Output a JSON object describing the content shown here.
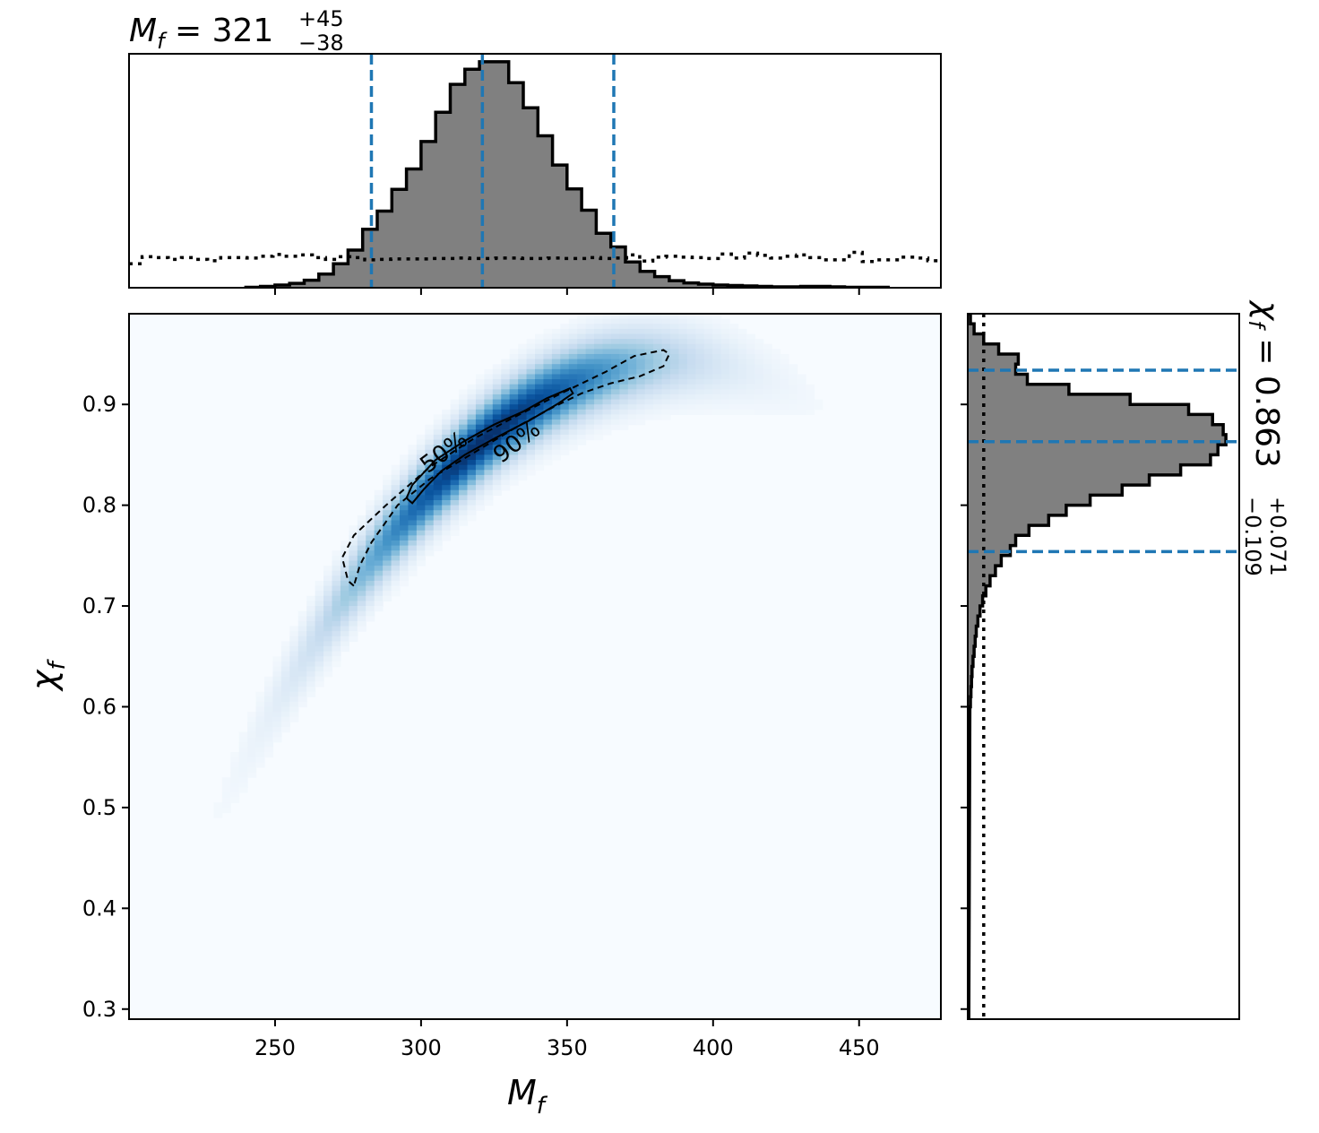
{
  "chart_data": {
    "type": "heatmap",
    "subtype": "corner plot: 2D posterior density with marginal histograms",
    "xlabel": "M_f",
    "ylabel": "χ_f",
    "xlim": [
      200,
      478
    ],
    "ylim": [
      0.29,
      0.99
    ],
    "x_ticks": [
      250,
      300,
      350,
      400,
      450
    ],
    "x_tick_labels": [
      "250",
      "300",
      "350",
      "400",
      "450"
    ],
    "y_ticks": [
      0.3,
      0.4,
      0.5,
      0.6,
      0.7,
      0.8,
      0.9
    ],
    "y_tick_labels": [
      "0.3",
      "0.4",
      "0.5",
      "0.6",
      "0.7",
      "0.8",
      "0.9"
    ],
    "colormap": "Blues",
    "colors": {
      "histogram_fill": "#808080",
      "quantile_line": "#1f77b4",
      "contour_line": "#000000"
    },
    "density_peak": {
      "x": 321,
      "y": 0.863
    },
    "contours": [
      {
        "label": "50%",
        "style": "solid",
        "points": [
          [
            297,
            0.802
          ],
          [
            295,
            0.807
          ],
          [
            297,
            0.82
          ],
          [
            305,
            0.845
          ],
          [
            315,
            0.864
          ],
          [
            325,
            0.88
          ],
          [
            335,
            0.893
          ],
          [
            343,
            0.906
          ],
          [
            351,
            0.916
          ],
          [
            352,
            0.911
          ],
          [
            347,
            0.901
          ],
          [
            337,
            0.884
          ],
          [
            325,
            0.866
          ],
          [
            315,
            0.85
          ],
          [
            307,
            0.834
          ],
          [
            301,
            0.816
          ],
          [
            297,
            0.802
          ]
        ]
      },
      {
        "label": "90%",
        "style": "dashed",
        "points": [
          [
            277,
            0.72
          ],
          [
            275,
            0.725
          ],
          [
            273,
            0.748
          ],
          [
            277,
            0.77
          ],
          [
            288,
            0.8
          ],
          [
            303,
            0.838
          ],
          [
            318,
            0.866
          ],
          [
            333,
            0.889
          ],
          [
            348,
            0.911
          ],
          [
            363,
            0.932
          ],
          [
            373,
            0.948
          ],
          [
            383,
            0.954
          ],
          [
            385,
            0.95
          ],
          [
            383,
            0.938
          ],
          [
            375,
            0.928
          ],
          [
            365,
            0.921
          ],
          [
            355,
            0.911
          ],
          [
            345,
            0.897
          ],
          [
            333,
            0.878
          ],
          [
            318,
            0.852
          ],
          [
            303,
            0.826
          ],
          [
            292,
            0.8
          ],
          [
            283,
            0.763
          ],
          [
            279,
            0.74
          ],
          [
            277,
            0.72
          ]
        ]
      }
    ],
    "marginals": {
      "x": {
        "summary": {
          "param": "M_f",
          "median": "321",
          "plus": "+45",
          "minus": "−38"
        },
        "quantiles": [
          283,
          321,
          366
        ],
        "bin_edges": [
          240,
          245,
          250,
          255,
          260,
          265,
          270,
          275,
          280,
          285,
          290,
          295,
          300,
          305,
          310,
          315,
          320,
          325,
          330,
          335,
          340,
          345,
          350,
          355,
          360,
          365,
          370,
          375,
          380,
          385,
          390,
          395,
          400,
          405,
          410,
          415,
          420,
          425,
          430,
          435,
          440,
          445,
          450,
          455,
          460
        ],
        "density": [
          0.001,
          0.003,
          0.006,
          0.01,
          0.017,
          0.031,
          0.054,
          0.085,
          0.132,
          0.173,
          0.222,
          0.268,
          0.33,
          0.396,
          0.459,
          0.493,
          0.51,
          0.51,
          0.463,
          0.406,
          0.343,
          0.277,
          0.223,
          0.175,
          0.123,
          0.092,
          0.058,
          0.037,
          0.025,
          0.016,
          0.011,
          0.008,
          0.006,
          0.005,
          0.004,
          0.003,
          0.002,
          0.002,
          0.003,
          0.003,
          0.002,
          0.001,
          0.001,
          0.001
        ],
        "prior": [
          0.054,
          0.07,
          0.068,
          0.064,
          0.068,
          0.064,
          0.061,
          0.068,
          0.068,
          0.067,
          0.071,
          0.075,
          0.071,
          0.074,
          0.068,
          0.064,
          0.07,
          0.068,
          0.063,
          0.064,
          0.065,
          0.065,
          0.065,
          0.066,
          0.066,
          0.067,
          0.066,
          0.066,
          0.067,
          0.067,
          0.066,
          0.066,
          0.067,
          0.066,
          0.066,
          0.068,
          0.066,
          0.067,
          0.074,
          0.06,
          0.069,
          0.071,
          0.069,
          0.068,
          0.066,
          0.076,
          0.067,
          0.078,
          0.073,
          0.067,
          0.071,
          0.074,
          0.068,
          0.063,
          0.063,
          0.08,
          0.059,
          0.063,
          0.063,
          0.069,
          0.067,
          0.061
        ]
      },
      "y": {
        "summary": {
          "param": "χ_f",
          "median": "0.863",
          "plus": "+0.071",
          "minus": "−0.109"
        },
        "quantiles": [
          0.754,
          0.863,
          0.934
        ],
        "bin_edges": [
          0.6,
          0.61,
          0.62,
          0.63,
          0.64,
          0.65,
          0.66,
          0.67,
          0.68,
          0.69,
          0.7,
          0.71,
          0.72,
          0.73,
          0.74,
          0.75,
          0.76,
          0.77,
          0.78,
          0.79,
          0.8,
          0.81,
          0.82,
          0.83,
          0.84,
          0.85,
          0.86,
          0.87,
          0.88,
          0.89,
          0.9,
          0.91,
          0.92,
          0.93,
          0.94,
          0.95,
          0.96,
          0.97,
          0.98,
          0.99
        ],
        "density": [
          0.005,
          0.006,
          0.007,
          0.008,
          0.01,
          0.012,
          0.014,
          0.016,
          0.019,
          0.023,
          0.028,
          0.034,
          0.042,
          0.052,
          0.063,
          0.08,
          0.09,
          0.115,
          0.152,
          0.185,
          0.23,
          0.29,
          0.341,
          0.4,
          0.456,
          0.47,
          0.485,
          0.48,
          0.46,
          0.415,
          0.305,
          0.19,
          0.112,
          0.09,
          0.095,
          0.058,
          0.03,
          0.012,
          0.005
        ],
        "prior_x": 0.03
      }
    }
  }
}
